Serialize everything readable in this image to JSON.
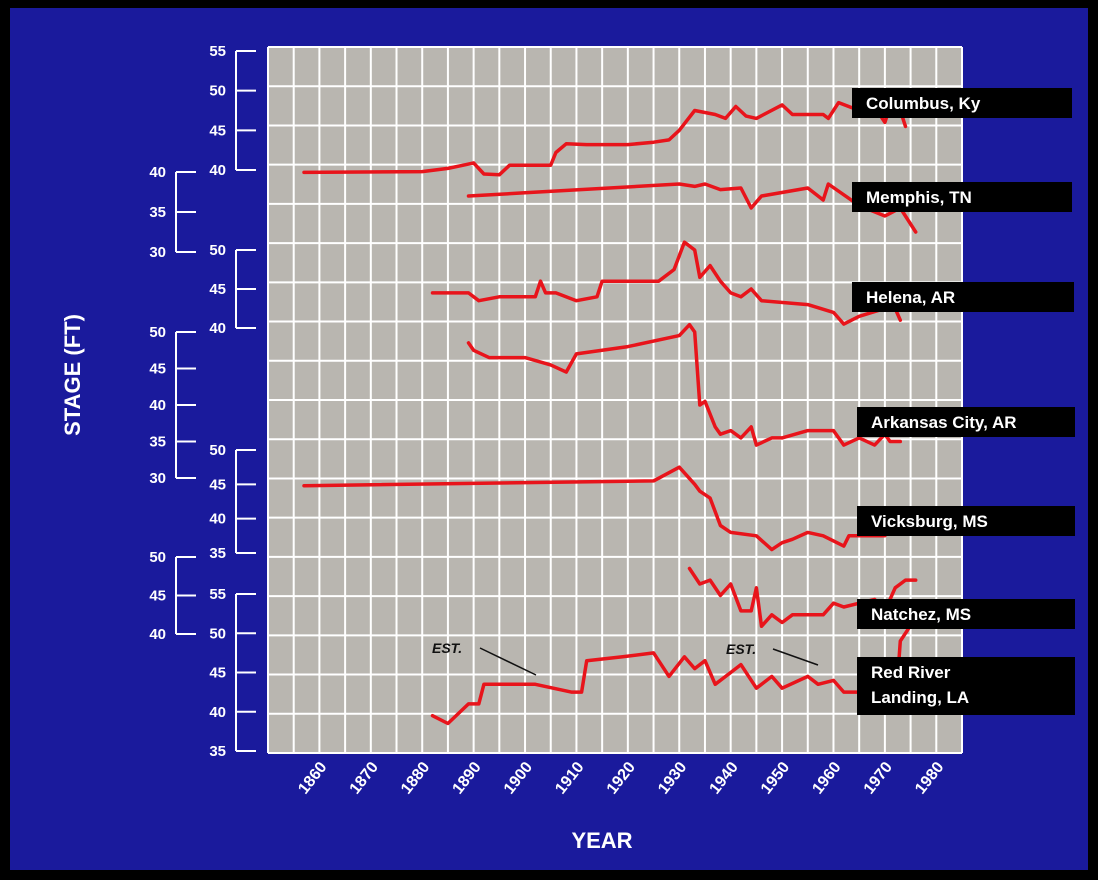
{
  "chart_data": {
    "type": "line",
    "xlabel": "YEAR",
    "ylabel": "STAGE (FT)",
    "x_ticks": [
      1860,
      1870,
      1880,
      1890,
      1900,
      1910,
      1920,
      1930,
      1940,
      1950,
      1960,
      1970,
      1980
    ],
    "xlim": [
      1850,
      1985
    ],
    "colors": {
      "background": "#1a1a9c",
      "plot": "#b9b6b0",
      "grid": "#ffffff",
      "line": "#e8141b",
      "label_box": "#000000",
      "text": "#ffffff"
    },
    "series": [
      {
        "name": "Columbus, Ky",
        "scale_ticks": [
          40,
          45,
          50,
          55
        ],
        "ylim": [
          40,
          55
        ],
        "x": [
          1857,
          1880,
          1885,
          1888,
          1890,
          1892,
          1895,
          1897,
          1905,
          1906,
          1908,
          1912,
          1920,
          1925,
          1928,
          1930,
          1933,
          1937,
          1939,
          1941,
          1943,
          1945,
          1950,
          1952,
          1955,
          1958,
          1959,
          1961,
          1965,
          1968,
          1970,
          1971,
          1973,
          1974
        ],
        "y": [
          39.7,
          39.8,
          40.2,
          40.6,
          40.9,
          39.5,
          39.4,
          40.6,
          40.6,
          42.2,
          43.3,
          43.2,
          43.2,
          43.5,
          43.8,
          45.0,
          47.5,
          47.0,
          46.5,
          48.0,
          46.8,
          46.5,
          48.2,
          47.0,
          47.0,
          47.0,
          46.5,
          48.5,
          47.5,
          48.0,
          46.0,
          48.0,
          47.5,
          45.5
        ]
      },
      {
        "name": "Memphis, TN",
        "scale_ticks": [
          30,
          35,
          40
        ],
        "ylim": [
          30,
          40
        ],
        "x": [
          1889,
          1900,
          1930,
          1933,
          1935,
          1938,
          1942,
          1944,
          1946,
          1955,
          1958,
          1959,
          1965,
          1970,
          1973,
          1976
        ],
        "y": [
          37.0,
          37.4,
          38.5,
          38.2,
          38.5,
          37.8,
          38.0,
          35.5,
          37.0,
          38.0,
          36.5,
          38.5,
          35.8,
          34.5,
          35.5,
          32.5
        ]
      },
      {
        "name": "Helena, AR",
        "scale_ticks": [
          40,
          45,
          50
        ],
        "ylim": [
          40,
          50
        ],
        "x": [
          1882,
          1889,
          1891,
          1895,
          1902,
          1903,
          1904,
          1906,
          1910,
          1914,
          1915,
          1926,
          1929,
          1931,
          1933,
          1934,
          1936,
          1938,
          1940,
          1942,
          1944,
          1946,
          1955,
          1960,
          1962,
          1965,
          1970,
          1971,
          1973
        ],
        "y": [
          44.5,
          44.5,
          43.5,
          44.0,
          44.0,
          46.0,
          44.5,
          44.5,
          43.5,
          44.0,
          46.0,
          46.0,
          47.5,
          51.0,
          50.0,
          46.5,
          48.0,
          46.0,
          44.5,
          44.0,
          45.0,
          43.5,
          43.0,
          42.0,
          40.5,
          41.5,
          42.5,
          44.0,
          41.0
        ]
      },
      {
        "name": "Arkansas City, AR",
        "scale_ticks": [
          30,
          35,
          40,
          45,
          50
        ],
        "ylim": [
          30,
          50
        ],
        "x": [
          1889,
          1890,
          1893,
          1900,
          1905,
          1908,
          1910,
          1920,
          1930,
          1932,
          1933,
          1934,
          1935,
          1937,
          1938,
          1940,
          1942,
          1944,
          1945,
          1948,
          1950,
          1955,
          1960,
          1962,
          1965,
          1968,
          1970,
          1971,
          1973
        ],
        "y": [
          48.5,
          47.5,
          46.5,
          46.5,
          45.5,
          44.5,
          47.0,
          48.0,
          49.5,
          51.0,
          50.0,
          40.0,
          40.5,
          37.0,
          36.0,
          36.5,
          35.5,
          37.0,
          34.5,
          35.5,
          35.5,
          36.5,
          36.5,
          34.5,
          35.5,
          34.5,
          36.0,
          35.0,
          35.0
        ]
      },
      {
        "name": "Vicksburg, MS",
        "scale_ticks": [
          35,
          40,
          45,
          50
        ],
        "ylim": [
          35,
          50
        ],
        "x": [
          1857,
          1925,
          1930,
          1933,
          1934,
          1936,
          1938,
          1940,
          1945,
          1948,
          1950,
          1952,
          1955,
          1958,
          1962,
          1963,
          1967,
          1970,
          1971,
          1973
        ],
        "y": [
          44.8,
          45.5,
          47.5,
          45.0,
          44.0,
          43.0,
          39.0,
          38.0,
          37.5,
          35.5,
          36.5,
          37.0,
          38.0,
          37.5,
          36.0,
          37.5,
          37.5,
          37.5,
          41.0,
          40.0
        ]
      },
      {
        "name": "Natchez, MS",
        "scale_ticks": [
          40,
          45,
          50
        ],
        "ylim": [
          40,
          50
        ],
        "x": [
          1932,
          1934,
          1936,
          1938,
          1940,
          1942,
          1944,
          1945,
          1946,
          1948,
          1950,
          1952,
          1958,
          1960,
          1962,
          1965,
          1968,
          1970,
          1972,
          1974,
          1976
        ],
        "y": [
          48.5,
          46.5,
          47.0,
          45.0,
          46.5,
          43.0,
          43.0,
          46.0,
          41.0,
          42.5,
          41.5,
          42.5,
          42.5,
          44.0,
          43.5,
          44.0,
          44.5,
          43.0,
          46.0,
          47.0,
          47.0
        ]
      },
      {
        "name": "Red River Landing, LA",
        "scale_ticks": [
          35,
          40,
          45,
          50,
          55
        ],
        "ylim": [
          35,
          55
        ],
        "x": [
          1882,
          1885,
          1889,
          1891,
          1892,
          1902,
          1909,
          1911,
          1912,
          1919,
          1925,
          1928,
          1931,
          1933,
          1935,
          1937,
          1940,
          1942,
          1945,
          1948,
          1950,
          1955,
          1957,
          1960,
          1962,
          1965,
          1968,
          1970,
          1971,
          1972,
          1973,
          1975
        ],
        "y": [
          39.5,
          38.5,
          41.0,
          41.0,
          43.5,
          43.5,
          42.5,
          42.5,
          46.5,
          47.0,
          47.5,
          44.5,
          47.0,
          45.5,
          46.5,
          43.5,
          45.0,
          46.0,
          43.0,
          44.5,
          43.0,
          44.5,
          43.5,
          44.0,
          42.5,
          42.5,
          45.0,
          41.5,
          44.5,
          40.0,
          49.0,
          51.0
        ]
      }
    ],
    "annotations": [
      {
        "text": "EST.",
        "x": 1907,
        "series": "Red River Landing, LA"
      },
      {
        "text": "EST.",
        "x": 1969,
        "series": "Red River Landing, LA"
      }
    ]
  }
}
